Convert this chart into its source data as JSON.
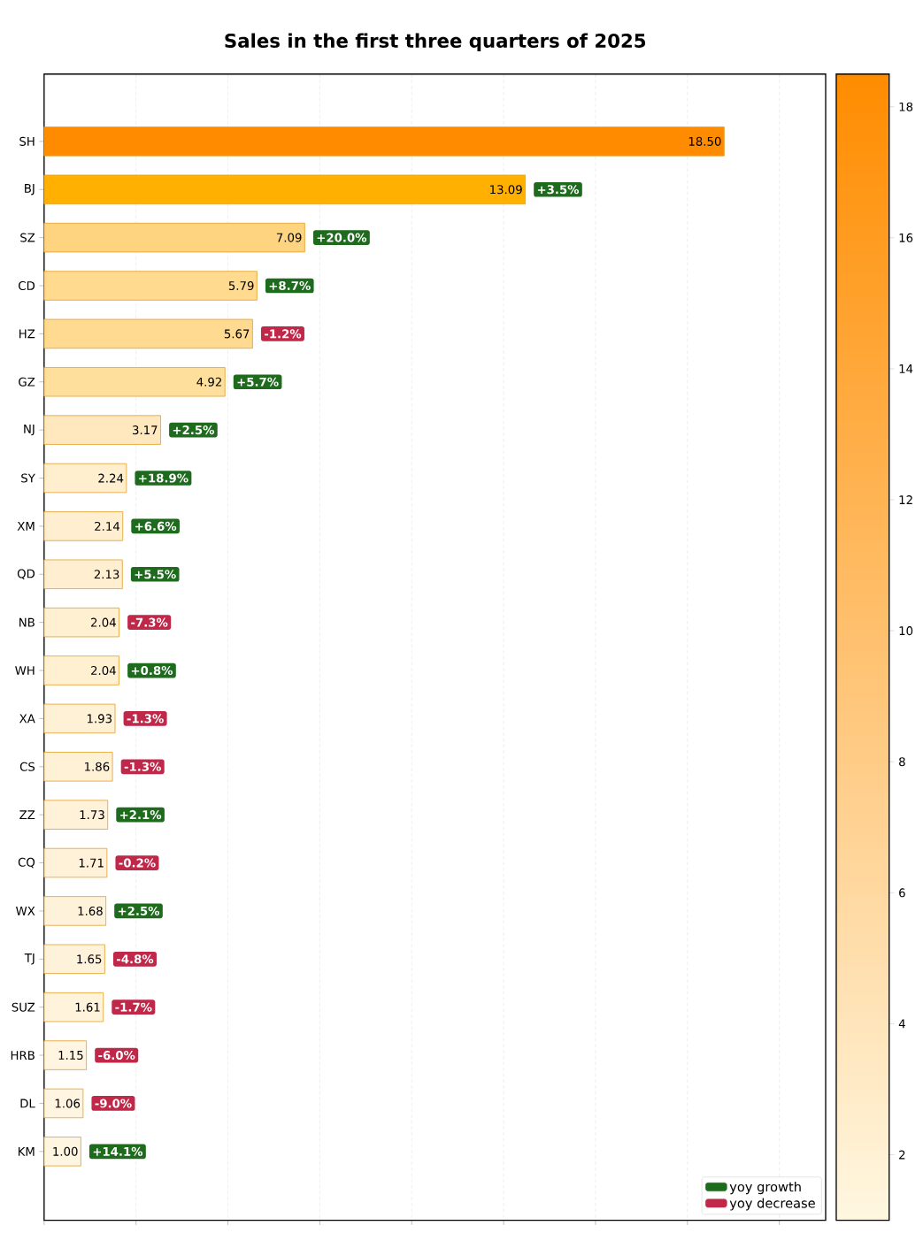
{
  "chart_data": {
    "type": "bar",
    "orientation": "horizontal",
    "title": "Sales in the first three quarters of 2025",
    "categories": [
      "SH",
      "BJ",
      "SZ",
      "CD",
      "HZ",
      "GZ",
      "NJ",
      "SY",
      "XM",
      "QD",
      "NB",
      "WH",
      "XA",
      "CS",
      "ZZ",
      "CQ",
      "WX",
      "TJ",
      "SUZ",
      "HRB",
      "DL",
      "KM"
    ],
    "series": [
      {
        "values": [
          18.5,
          13.09,
          7.09,
          5.79,
          5.67,
          4.92,
          3.17,
          2.24,
          2.14,
          2.13,
          2.04,
          2.04,
          1.93,
          1.86,
          1.73,
          1.71,
          1.68,
          1.65,
          1.61,
          1.15,
          1.06,
          1.0
        ],
        "colors": [
          "#ff8c00",
          "#ffb000",
          "#ffd480",
          "#ffda8f",
          "#ffda90",
          "#ffdf9c",
          "#ffe8bd",
          "#ffefcf",
          "#ffefd0",
          "#ffefd0",
          "#fff0d2",
          "#fff0d2",
          "#fff1d5",
          "#fff1d6",
          "#fff2d9",
          "#fff2d9",
          "#fff2da",
          "#fff2da",
          "#fff3db",
          "#fff5e0",
          "#fff5e1",
          "#fff6e2"
        ],
        "value_labels": [
          "18.50",
          "13.09",
          "7.09",
          "5.79",
          "5.67",
          "4.92",
          "3.17",
          "2.24",
          "2.14",
          "2.13",
          "2.04",
          "2.04",
          "1.93",
          "1.86",
          "1.73",
          "1.71",
          "1.68",
          "1.65",
          "1.61",
          "1.15",
          "1.06",
          "1.00"
        ]
      },
      {
        "name": "yoy growth",
        "type": "other",
        "color": "#1e6b1e",
        "values": [
          null,
          null,
          null,
          null,
          null,
          null,
          null,
          null,
          null,
          null,
          null,
          null,
          null,
          null,
          null,
          null,
          null,
          null,
          null,
          null,
          null,
          null
        ],
        "value_labels": [
          null,
          "+3.5%",
          "+20.0%",
          "+8.7%",
          null,
          "+5.7%",
          "+2.5%",
          "+18.9%",
          "+6.6%",
          "+5.5%",
          null,
          "+0.8%",
          null,
          null,
          "+2.1%",
          null,
          "+2.5%",
          null,
          null,
          null,
          null,
          "+14.1%"
        ]
      },
      {
        "name": "yoy decrease",
        "type": "other",
        "color": "#c0284a",
        "values": [
          null,
          null,
          null,
          null,
          null,
          null,
          null,
          null,
          null,
          null,
          null,
          null,
          null,
          null,
          null,
          null,
          null,
          null,
          null,
          null,
          null,
          null
        ],
        "value_labels": [
          null,
          null,
          null,
          null,
          "-1.2%",
          null,
          null,
          null,
          null,
          null,
          "-7.3%",
          null,
          "-1.3%",
          "-1.3%",
          null,
          "-0.2%",
          null,
          "-4.8%",
          "-1.7%",
          "-6.0%",
          "-9.0%",
          null
        ]
      }
    ],
    "xlim": [
      0,
      21.26
    ],
    "xticks": [
      0,
      2.5,
      5,
      7.5,
      10,
      12.5,
      15,
      17.5,
      20
    ],
    "tick_labels": "y",
    "grid": "x",
    "legend": "bottom right",
    "clim": [
      1,
      18.5
    ],
    "cticks": [
      2,
      4,
      6,
      8,
      10,
      12,
      14,
      16,
      18
    ]
  }
}
